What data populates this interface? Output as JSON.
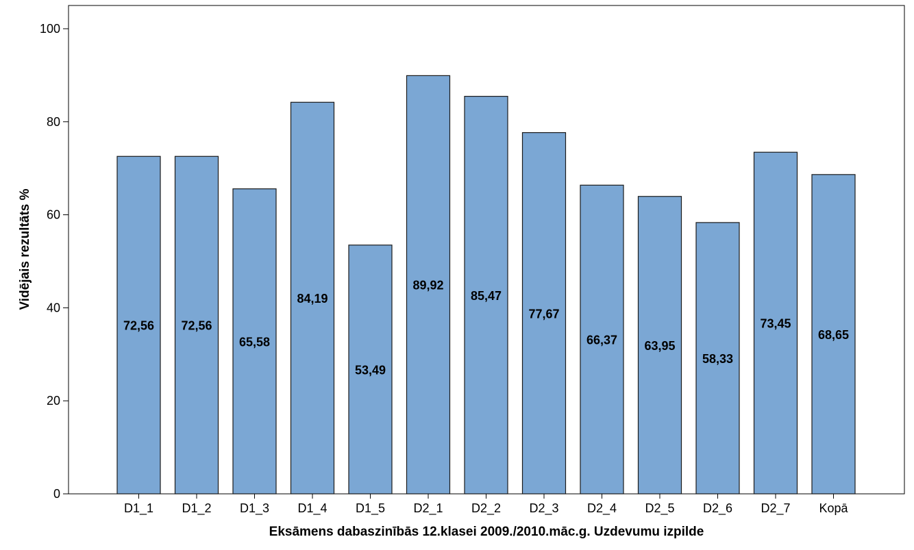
{
  "chart_data": {
    "type": "bar",
    "title": "",
    "xlabel": "Eksāmens dabaszinībās 12.klasei 2009./2010.māc.g. Uzdevumu izpilde",
    "ylabel": "Vidējais rezultāts %",
    "categories": [
      "D1_1",
      "D1_2",
      "D1_3",
      "D1_4",
      "D1_5",
      "D2_1",
      "D2_2",
      "D2_3",
      "D2_4",
      "D2_5",
      "D2_6",
      "D2_7",
      "Kopā"
    ],
    "values": [
      72.56,
      72.56,
      65.58,
      84.19,
      53.49,
      89.92,
      85.47,
      77.67,
      66.37,
      63.95,
      58.33,
      73.45,
      68.65
    ],
    "data_labels": [
      "72,56",
      "72,56",
      "65,58",
      "84,19",
      "53,49",
      "89,92",
      "85,47",
      "77,67",
      "66,37",
      "63,95",
      "58,33",
      "73,45",
      "68,65"
    ],
    "ylim": [
      0,
      105
    ],
    "yticks": [
      0,
      20,
      40,
      60,
      80,
      100
    ],
    "grid": false,
    "legend": "none",
    "bar_color": "#7ba7d4",
    "bar_edge_color": "#1a1a1a"
  }
}
